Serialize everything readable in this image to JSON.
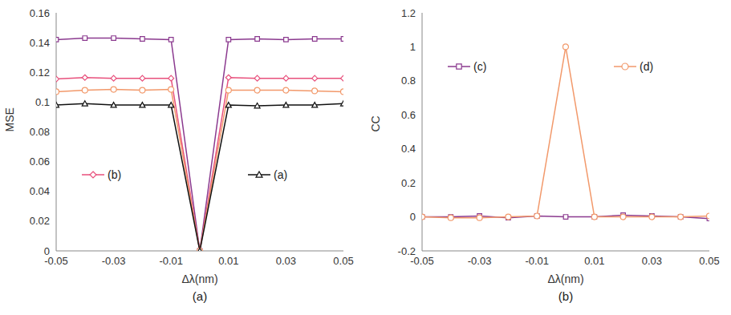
{
  "chart_data": [
    {
      "type": "line",
      "title": "(a)",
      "x_label": "Δλ(nm)",
      "y_label": "MSE",
      "x": [
        -0.05,
        -0.04,
        -0.03,
        -0.02,
        -0.01,
        0,
        0.01,
        0.02,
        0.03,
        0.04,
        0.05
      ],
      "xlim": [
        -0.05,
        0.05
      ],
      "xticks": [
        -0.05,
        -0.03,
        -0.01,
        0.01,
        0.03,
        0.05
      ],
      "ylim": [
        0,
        0.16
      ],
      "yticks": [
        0,
        0.02,
        0.04,
        0.06,
        0.08,
        0.1,
        0.12,
        0.14,
        0.16
      ],
      "grid": false,
      "legend": "center",
      "series": [
        {
          "color": "#8b3a8f",
          "marker": "square",
          "values": [
            0.142,
            0.143,
            0.143,
            0.1425,
            0.142,
            0,
            0.142,
            0.1425,
            0.142,
            0.1425,
            0.1425
          ]
        },
        {
          "name": "(b)",
          "color": "#e8507c",
          "marker": "diamond",
          "values": [
            0.1155,
            0.1165,
            0.116,
            0.116,
            0.116,
            0,
            0.1165,
            0.116,
            0.116,
            0.116,
            0.116
          ]
        },
        {
          "color": "#f2996b",
          "marker": "circle",
          "values": [
            0.107,
            0.108,
            0.1085,
            0.108,
            0.1085,
            0,
            0.108,
            0.108,
            0.108,
            0.1075,
            0.107
          ]
        },
        {
          "name": "(a)",
          "color": "#111111",
          "marker": "triangle",
          "values": [
            0.098,
            0.099,
            0.098,
            0.098,
            0.098,
            0,
            0.098,
            0.0975,
            0.098,
            0.098,
            0.099
          ]
        }
      ]
    },
    {
      "type": "line",
      "title": "(b)",
      "x_label": "Δλ(nm)",
      "y_label": "CC",
      "x": [
        -0.05,
        -0.04,
        -0.03,
        -0.02,
        -0.01,
        0,
        0.01,
        0.02,
        0.03,
        0.04,
        0.05
      ],
      "xlim": [
        -0.05,
        0.05
      ],
      "xticks": [
        -0.05,
        -0.03,
        -0.01,
        0.01,
        0.03,
        0.05
      ],
      "ylim": [
        -0.2,
        1.2
      ],
      "yticks": [
        -0.2,
        0,
        0.2,
        0.4,
        0.6,
        0.8,
        1,
        1.2
      ],
      "grid": false,
      "legend": "top",
      "series": [
        {
          "name": "(c)",
          "color": "#8b3a8f",
          "marker": "square",
          "values": [
            0,
            0,
            0.005,
            -0.005,
            0.005,
            0,
            0,
            0.01,
            0.005,
            0,
            -0.01
          ]
        },
        {
          "name": "(d)",
          "color": "#f2996b",
          "marker": "circle",
          "values": [
            0,
            -0.005,
            -0.005,
            0,
            0.005,
            1,
            0,
            0,
            0,
            0,
            0.005
          ]
        }
      ]
    }
  ]
}
